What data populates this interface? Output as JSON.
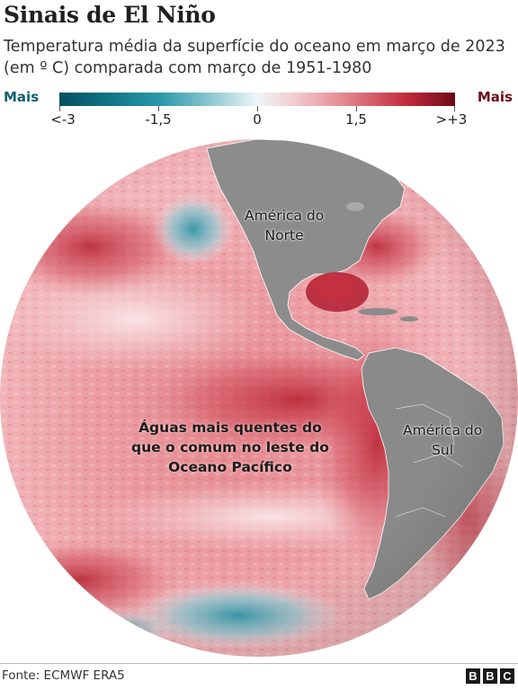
{
  "title": "Sinais de El Niño",
  "subtitle": "Temperatura média da superfície do oceano em março de 2023 (em º C) comparada com março de 1951-1980",
  "legend": {
    "left_label": "Mais",
    "right_label": "Mais",
    "ticks": [
      "<-3",
      "-1,5",
      "0",
      "1,5",
      ">+3"
    ],
    "tick_values": [
      -3,
      -1.5,
      0,
      1.5,
      3
    ],
    "range": [
      -3,
      3
    ],
    "colors": {
      "cold_extreme": "#05505e",
      "cold": "#2c99aa",
      "neutral": "#eef6f8",
      "warm": "#e07b84",
      "warm_extreme": "#6d0a18"
    }
  },
  "map": {
    "projection": "orthographic globe",
    "labels": {
      "north_america": [
        "América do",
        "Norte"
      ],
      "south_america": [
        "América do",
        "Sul"
      ],
      "pacific_note": [
        "Águas mais quentes do",
        "que o comum no leste do",
        "Oceano Pacífico"
      ]
    },
    "land_color": "#8a8a8a",
    "ocean_base_color": "#f2b9bd"
  },
  "source": "Fonte: ECMWF ERA5",
  "logo": [
    "B",
    "B",
    "C"
  ]
}
